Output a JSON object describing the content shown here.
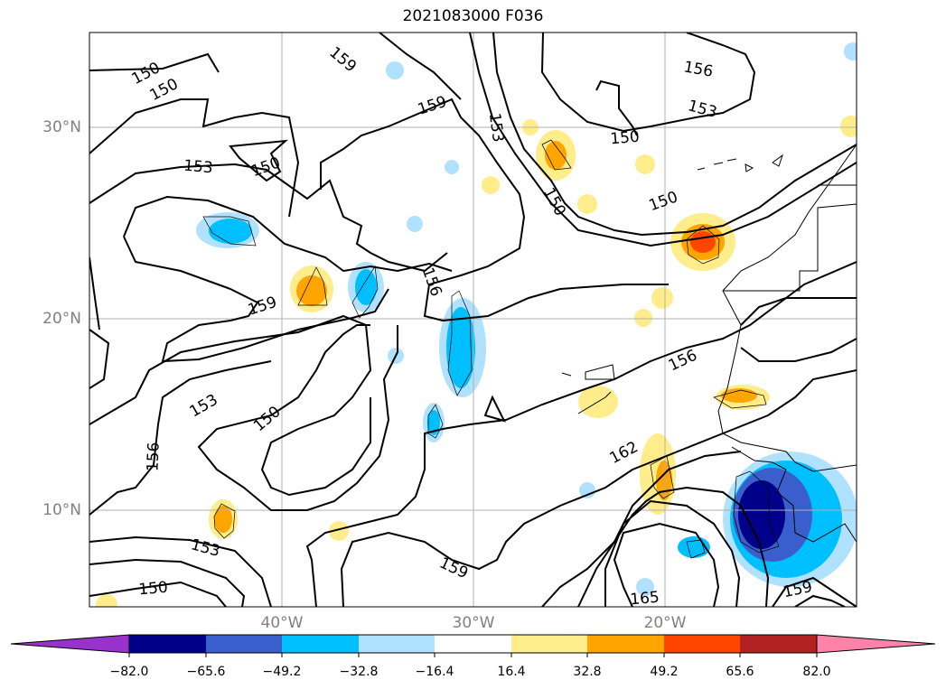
{
  "title": "2021083000 F036",
  "lat_labels": [
    "30°N",
    "20°N",
    "10°N"
  ],
  "lon_labels": [
    "40°W",
    "30°W",
    "20°W"
  ],
  "contour_labels": [
    {
      "text": "150"
    },
    {
      "text": "150"
    },
    {
      "text": "159"
    },
    {
      "text": "153"
    },
    {
      "text": "156"
    },
    {
      "text": "153"
    },
    {
      "text": "150"
    },
    {
      "text": "159"
    },
    {
      "text": "150"
    },
    {
      "text": "153"
    },
    {
      "text": "150"
    },
    {
      "text": "150"
    },
    {
      "text": "156"
    },
    {
      "text": "159"
    },
    {
      "text": "156"
    },
    {
      "text": "153"
    },
    {
      "text": "150"
    },
    {
      "text": "162"
    },
    {
      "text": "156"
    },
    {
      "text": "153"
    },
    {
      "text": "150"
    },
    {
      "text": "159"
    },
    {
      "text": "165"
    },
    {
      "text": "159"
    }
  ],
  "colorbar": {
    "colors": [
      "#9932cc",
      "#00008b",
      "#3a5fcd",
      "#00bfff",
      "#b0e2ff",
      "#ffffff",
      "#ffec8b",
      "#ffa500",
      "#ff4500",
      "#b22222",
      "#ff82ab"
    ],
    "ticks": [
      "−82.0",
      "−65.6",
      "−49.2",
      "−32.8",
      "−16.4",
      "16.4",
      "32.8",
      "49.2",
      "65.6",
      "82.0"
    ]
  }
}
